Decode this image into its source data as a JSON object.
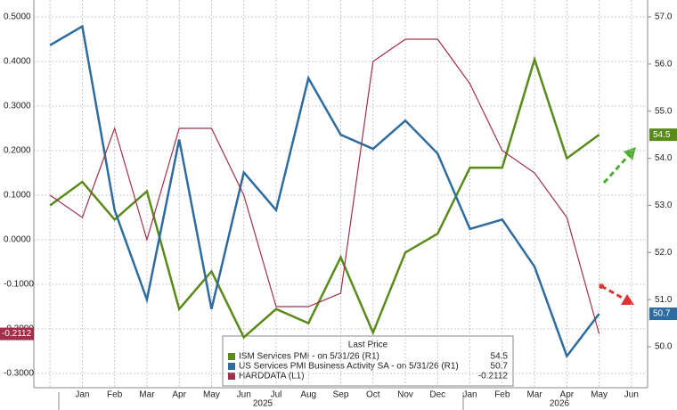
{
  "chart_data": {
    "type": "line",
    "categories": [
      null,
      "Jan",
      "Feb",
      "Mar",
      "Apr",
      "May",
      "Jun",
      "Jul",
      "Aug",
      "Sep",
      "Oct",
      "Nov",
      "Dec",
      "Jan",
      "Feb",
      "Mar",
      "Apr",
      "May",
      "Jun"
    ],
    "years": [
      "2025",
      "2026"
    ],
    "legend_title": "Last Price",
    "ylim": [
      -0.332,
      0.538
    ],
    "yticks": [
      {
        "value": 0.5,
        "label": "0.5000"
      },
      {
        "value": 0.4,
        "label": "0.4000"
      },
      {
        "value": 0.3,
        "label": "0.3000"
      },
      {
        "value": 0.2,
        "label": "0.2000"
      },
      {
        "value": 0.1,
        "label": "0.1000"
      },
      {
        "value": 0,
        "label": "0.0000"
      },
      {
        "value": -0.1,
        "label": "-0.1000"
      },
      {
        "value": -0.2,
        "label": "-0.2000"
      },
      {
        "value": -0.3,
        "label": "-0.3000"
      }
    ],
    "y2lim": [
      49.13,
      57.36
    ],
    "y2ticks": [
      {
        "value": 57,
        "label": "57.0"
      },
      {
        "value": 56,
        "label": "56.0"
      },
      {
        "value": 55,
        "label": "55.0"
      },
      {
        "value": 54,
        "label": "54.0"
      },
      {
        "value": 53,
        "label": "53.0"
      },
      {
        "value": 52,
        "label": "52.0"
      },
      {
        "value": 51,
        "label": "51.0"
      },
      {
        "value": 50,
        "label": "50.0"
      }
    ],
    "grid": true,
    "series": [
      {
        "name": "ISM Services PMI - on 5/31/26 (R1)",
        "color": "#5a8a1a",
        "axis": "y2",
        "last_value": 54.5,
        "values": [
          53.0,
          53.5,
          52.7,
          53.3,
          50.8,
          51.6,
          50.2,
          50.8,
          50.5,
          51.9,
          50.3,
          52.0,
          52.4,
          53.8,
          53.8,
          56.1,
          54.0,
          54.5,
          null
        ]
      },
      {
        "name": "US Services PMI Business Activity SA - on 5/31/26 (R1)",
        "color": "#2e6b9e",
        "axis": "y2",
        "last_value": 50.7,
        "values": [
          56.4,
          56.8,
          52.9,
          51.0,
          54.4,
          50.8,
          53.7,
          52.9,
          55.7,
          54.5,
          54.2,
          54.8,
          54.1,
          52.5,
          52.7,
          51.7,
          49.8,
          50.7,
          null
        ]
      },
      {
        "name": "HARDDATA (L1)",
        "color": "#a0304a",
        "axis": "y",
        "last_value": -0.2112,
        "values": [
          0.1,
          0.05,
          0.25,
          0.0,
          0.25,
          0.25,
          0.1,
          -0.15,
          -0.15,
          -0.12,
          0.4,
          0.45,
          0.45,
          0.35,
          0.2,
          0.15,
          0.05,
          -0.2112,
          null
        ]
      }
    ]
  }
}
